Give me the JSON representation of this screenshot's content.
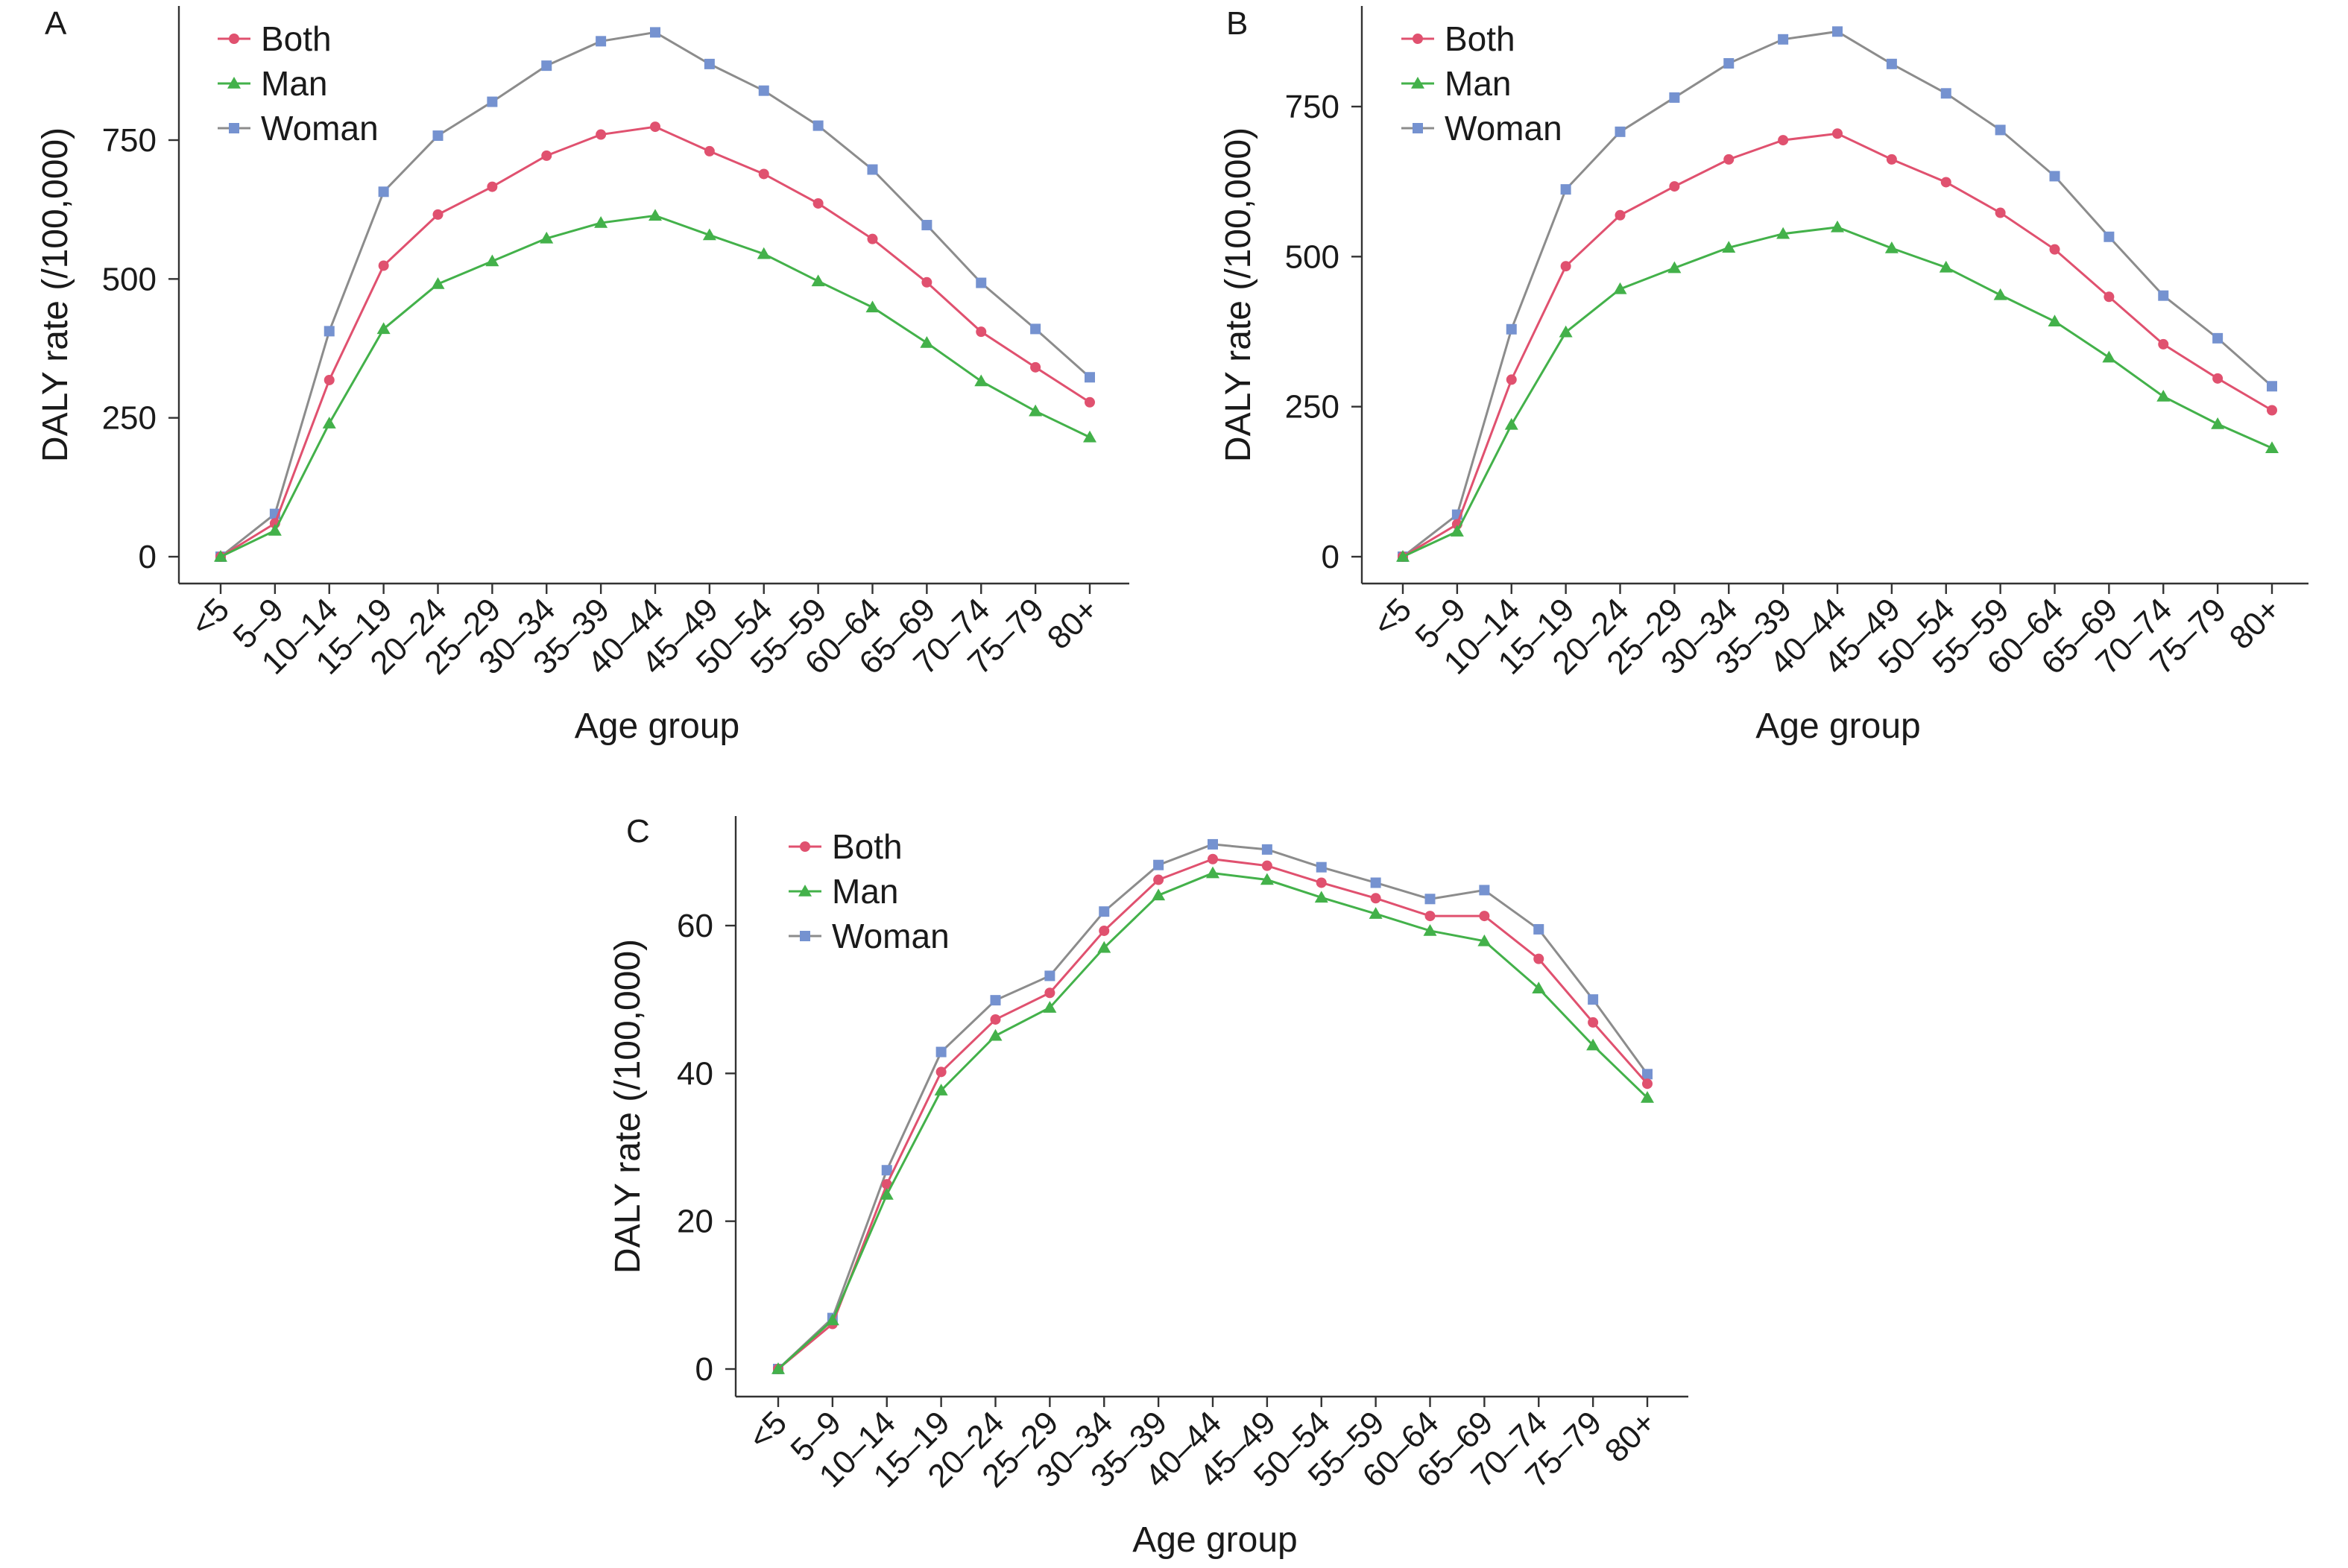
{
  "colors": {
    "both": "#e0516f",
    "man": "#43b14a",
    "woman": "#7592d0",
    "woman_line": "#8c8c8c",
    "axis": "#333333"
  },
  "chart_data": [
    {
      "panel": "A",
      "type": "line",
      "xlabel": "Age group",
      "ylabel": "DALY rate (/100,000)",
      "ylim": [
        0,
        950
      ],
      "yticks": [
        0,
        250,
        500,
        750
      ],
      "grid": false,
      "legend": "top-left",
      "categories": [
        "<5",
        "5–9",
        "10–14",
        "15–19",
        "20–24",
        "25–29",
        "30–34",
        "35–39",
        "40–44",
        "45–49",
        "50–54",
        "55–59",
        "60–64",
        "65–69",
        "70–74",
        "75–79",
        "80+"
      ],
      "series": [
        {
          "name": "Both",
          "marker": "circle",
          "values": [
            0,
            60,
            318,
            524,
            616,
            666,
            722,
            760,
            774,
            730,
            689,
            636,
            572,
            494,
            405,
            341,
            278
          ]
        },
        {
          "name": "Man",
          "marker": "triangle",
          "values": [
            0,
            47,
            240,
            410,
            491,
            532,
            573,
            601,
            614,
            579,
            545,
            496,
            449,
            385,
            316,
            262,
            215
          ]
        },
        {
          "name": "Woman",
          "marker": "square",
          "values": [
            0,
            77,
            406,
            657,
            758,
            819,
            884,
            928,
            944,
            887,
            839,
            776,
            697,
            597,
            493,
            410,
            323
          ]
        }
      ]
    },
    {
      "panel": "B",
      "type": "line",
      "xlabel": "Age group",
      "ylabel": "DALY rate (/100,000)",
      "ylim": [
        0,
        880
      ],
      "yticks": [
        0,
        250,
        500,
        750
      ],
      "grid": false,
      "legend": "top-left",
      "categories": [
        "<5",
        "5–9",
        "10–14",
        "15–19",
        "20–24",
        "25–29",
        "30–34",
        "35–39",
        "40–44",
        "45–49",
        "50–54",
        "55–59",
        "60–64",
        "65–69",
        "70–74",
        "75–79",
        "80+"
      ],
      "series": [
        {
          "name": "Both",
          "marker": "circle",
          "values": [
            0,
            54,
            295,
            484,
            569,
            617,
            662,
            694,
            705,
            662,
            624,
            573,
            512,
            433,
            354,
            297,
            244
          ]
        },
        {
          "name": "Man",
          "marker": "triangle",
          "values": [
            0,
            42,
            220,
            374,
            446,
            481,
            515,
            538,
            549,
            514,
            482,
            436,
            392,
            332,
            267,
            221,
            181
          ]
        },
        {
          "name": "Woman",
          "marker": "square",
          "values": [
            0,
            70,
            379,
            612,
            708,
            765,
            822,
            862,
            875,
            821,
            772,
            711,
            634,
            533,
            435,
            364,
            284
          ]
        }
      ]
    },
    {
      "panel": "C",
      "type": "line",
      "xlabel": "Age group",
      "ylabel": "DALY rate (/100,000)",
      "ylim": [
        0,
        73
      ],
      "yticks": [
        0,
        20,
        40,
        60
      ],
      "grid": false,
      "legend": "top-left",
      "categories": [
        "<5",
        "5–9",
        "10–14",
        "15–19",
        "20–24",
        "25–29",
        "30–34",
        "35–39",
        "40–44",
        "45–49",
        "50–54",
        "55–59",
        "60–64",
        "65–69",
        "70–74",
        "75–79",
        "80+"
      ],
      "series": [
        {
          "name": "Both",
          "marker": "circle",
          "values": [
            0,
            6.1,
            25.0,
            40.2,
            47.3,
            50.9,
            59.3,
            66.2,
            69.0,
            68.1,
            65.8,
            63.7,
            61.3,
            61.3,
            55.5,
            46.9,
            38.6
          ]
        },
        {
          "name": "Man",
          "marker": "triangle",
          "values": [
            0,
            6.6,
            23.6,
            37.7,
            45.1,
            48.9,
            57.0,
            64.1,
            67.1,
            66.2,
            63.8,
            61.6,
            59.3,
            57.9,
            51.5,
            43.8,
            36.7
          ]
        },
        {
          "name": "Woman",
          "marker": "square",
          "values": [
            0,
            6.9,
            26.9,
            42.9,
            49.9,
            53.2,
            61.9,
            68.2,
            71.0,
            70.3,
            67.9,
            65.8,
            63.6,
            64.8,
            59.5,
            50.0,
            39.9
          ]
        }
      ]
    }
  ]
}
